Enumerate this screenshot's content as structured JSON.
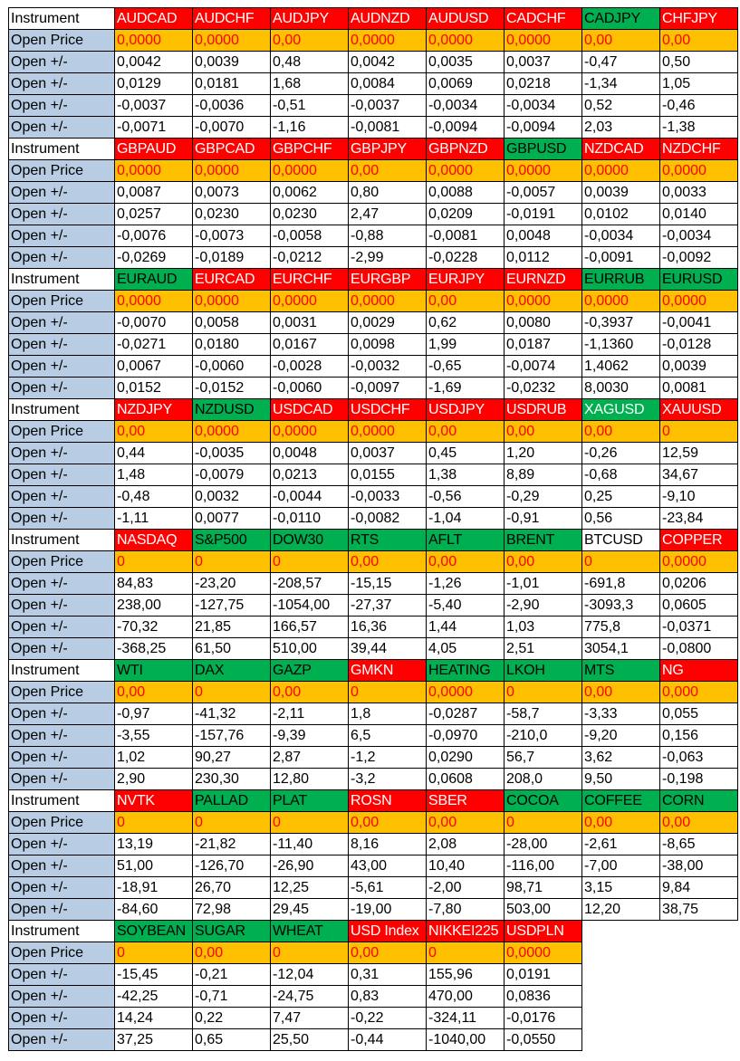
{
  "labels": {
    "instrument": "Instrument",
    "open_price": "Open Price",
    "open_change": "Open +/-"
  },
  "colors": {
    "label_bg": "#b8cce4",
    "open_price_bg": "#ffc000",
    "down_bg": "#ff0000",
    "up_bg": "#00b050",
    "neutral_bg": "#ffffff",
    "red_text": "#ff0000",
    "white_text": "#ffffff"
  },
  "blocks": [
    {
      "instruments": [
        {
          "name": "AUDCAD",
          "color": "red",
          "text": "white"
        },
        {
          "name": "AUDCHF",
          "color": "red",
          "text": "white"
        },
        {
          "name": "AUDJPY",
          "color": "red",
          "text": "white"
        },
        {
          "name": "AUDNZD",
          "color": "red",
          "text": "white"
        },
        {
          "name": "AUDUSD",
          "color": "red",
          "text": "white"
        },
        {
          "name": "CADCHF",
          "color": "red",
          "text": "white"
        },
        {
          "name": "CADJPY",
          "color": "green",
          "text": "black"
        },
        {
          "name": "CHFJPY",
          "color": "red",
          "text": "white"
        }
      ],
      "open_price": [
        "0,0000",
        "0,0000",
        "0,00",
        "0,0000",
        "0,0000",
        "0,0000",
        "0,00",
        "0,00"
      ],
      "changes": [
        [
          "0,0042",
          "0,0039",
          "0,48",
          "0,0042",
          "0,0035",
          "0,0037",
          "-0,47",
          "0,50"
        ],
        [
          "0,0129",
          "0,0181",
          "1,68",
          "0,0084",
          "0,0069",
          "0,0218",
          "-1,34",
          "1,05"
        ],
        [
          "-0,0037",
          "-0,0036",
          "-0,51",
          "-0,0037",
          "-0,0034",
          "-0,0034",
          "0,52",
          "-0,46"
        ],
        [
          "-0,0071",
          "-0,0070",
          "-1,16",
          "-0,0081",
          "-0,0094",
          "-0,0094",
          "2,03",
          "-1,38"
        ]
      ]
    },
    {
      "instruments": [
        {
          "name": "GBPAUD",
          "color": "red",
          "text": "white"
        },
        {
          "name": "GBPCAD",
          "color": "red",
          "text": "white"
        },
        {
          "name": "GBPCHF",
          "color": "red",
          "text": "white"
        },
        {
          "name": "GBPJPY",
          "color": "red",
          "text": "white"
        },
        {
          "name": "GBPNZD",
          "color": "red",
          "text": "white"
        },
        {
          "name": "GBPUSD",
          "color": "green",
          "text": "black"
        },
        {
          "name": "NZDCAD",
          "color": "red",
          "text": "white"
        },
        {
          "name": "NZDCHF",
          "color": "red",
          "text": "white"
        }
      ],
      "open_price": [
        "0,0000",
        "0,0000",
        "0,0000",
        "0,00",
        "0,0000",
        "0,0000",
        "0,0000",
        "0,0000"
      ],
      "changes": [
        [
          "0,0087",
          "0,0073",
          "0,0062",
          "0,80",
          "0,0088",
          "-0,0057",
          "0,0039",
          "0,0033"
        ],
        [
          "0,0257",
          "0,0230",
          "0,0230",
          "2,47",
          "0,0209",
          "-0,0191",
          "0,0102",
          "0,0140"
        ],
        [
          "-0,0076",
          "-0,0073",
          "-0,0058",
          "-0,88",
          "-0,0081",
          "0,0048",
          "-0,0034",
          "-0,0034"
        ],
        [
          "-0,0269",
          "-0,0189",
          "-0,0212",
          "-2,99",
          "-0,0228",
          "0,0112",
          "-0,0091",
          "-0,0092"
        ]
      ]
    },
    {
      "instruments": [
        {
          "name": "EURAUD",
          "color": "green",
          "text": "black"
        },
        {
          "name": "EURCAD",
          "color": "red",
          "text": "white"
        },
        {
          "name": "EURCHF",
          "color": "red",
          "text": "white"
        },
        {
          "name": "EURGBP",
          "color": "red",
          "text": "white"
        },
        {
          "name": "EURJPY",
          "color": "red",
          "text": "white"
        },
        {
          "name": "EURNZD",
          "color": "red",
          "text": "white"
        },
        {
          "name": "EURRUB",
          "color": "green",
          "text": "black"
        },
        {
          "name": "EURUSD",
          "color": "green",
          "text": "black"
        }
      ],
      "open_price": [
        "0,0000",
        "0,0000",
        "0,0000",
        "0,0000",
        "0,00",
        "0,0000",
        "0,0000",
        "0,0000"
      ],
      "changes": [
        [
          "-0,0070",
          "0,0058",
          "0,0031",
          "0,0029",
          "0,62",
          "0,0080",
          "-0,3937",
          "-0,0041"
        ],
        [
          "-0,0271",
          "0,0180",
          "0,0167",
          "0,0098",
          "1,99",
          "0,0187",
          "-1,1360",
          "-0,0128"
        ],
        [
          "0,0067",
          "-0,0060",
          "-0,0028",
          "-0,0032",
          "-0,65",
          "-0,0074",
          "1,4062",
          "0,0039"
        ],
        [
          "0,0152",
          "-0,0152",
          "-0,0060",
          "-0,0097",
          "-1,69",
          "-0,0232",
          "8,0030",
          "0,0081"
        ]
      ]
    },
    {
      "instruments": [
        {
          "name": "NZDJPY",
          "color": "red",
          "text": "white"
        },
        {
          "name": "NZDUSD",
          "color": "green",
          "text": "black"
        },
        {
          "name": "USDCAD",
          "color": "red",
          "text": "white"
        },
        {
          "name": "USDCHF",
          "color": "red",
          "text": "white"
        },
        {
          "name": "USDJPY",
          "color": "red",
          "text": "white"
        },
        {
          "name": "USDRUB",
          "color": "red",
          "text": "white"
        },
        {
          "name": "XAGUSD",
          "color": "green",
          "text": "white"
        },
        {
          "name": "XAUUSD",
          "color": "red",
          "text": "white"
        }
      ],
      "open_price": [
        "0,00",
        "0,0000",
        "0,0000",
        "0,0000",
        "0,00",
        "0,00",
        "0,00",
        "0"
      ],
      "changes": [
        [
          "0,44",
          "-0,0035",
          "0,0048",
          "0,0037",
          "0,45",
          "1,20",
          "-0,26",
          "12,59"
        ],
        [
          "1,48",
          "-0,0079",
          "0,0213",
          "0,0155",
          "1,38",
          "8,89",
          "-0,68",
          "34,67"
        ],
        [
          "-0,48",
          "0,0032",
          "-0,0044",
          "-0,0033",
          "-0,56",
          "-0,29",
          "0,25",
          "-9,10"
        ],
        [
          "-1,11",
          "0,0077",
          "-0,0110",
          "-0,0082",
          "-1,04",
          "-0,91",
          "0,56",
          "-23,84"
        ]
      ]
    },
    {
      "instruments": [
        {
          "name": "NASDAQ",
          "color": "red",
          "text": "white"
        },
        {
          "name": "S&P500",
          "color": "green",
          "text": "black"
        },
        {
          "name": "DOW30",
          "color": "green",
          "text": "black"
        },
        {
          "name": "RTS",
          "color": "green",
          "text": "black"
        },
        {
          "name": "AFLT",
          "color": "green",
          "text": "black"
        },
        {
          "name": "BRENT",
          "color": "green",
          "text": "black"
        },
        {
          "name": "BTCUSD",
          "color": "white",
          "text": "black"
        },
        {
          "name": "COPPER",
          "color": "red",
          "text": "white"
        }
      ],
      "open_price": [
        "0",
        "0",
        "0",
        "0,00",
        "0,00",
        "0,00",
        "0",
        "0,0000"
      ],
      "changes": [
        [
          "84,83",
          "-23,20",
          "-208,57",
          "-15,15",
          "-1,26",
          "-1,01",
          "-691,8",
          "0,0206"
        ],
        [
          "238,00",
          "-127,75",
          "-1054,00",
          "-27,37",
          "-5,40",
          "-2,90",
          "-3093,3",
          "0,0605"
        ],
        [
          "-70,32",
          "21,85",
          "166,57",
          "16,36",
          "1,44",
          "1,03",
          "775,8",
          "-0,0371"
        ],
        [
          "-368,25",
          "61,50",
          "510,00",
          "39,44",
          "4,05",
          "2,51",
          "3054,1",
          "-0,0800"
        ]
      ]
    },
    {
      "instruments": [
        {
          "name": "WTI",
          "color": "green",
          "text": "black"
        },
        {
          "name": "DAX",
          "color": "green",
          "text": "black"
        },
        {
          "name": "GAZP",
          "color": "green",
          "text": "black"
        },
        {
          "name": "GMKN",
          "color": "red",
          "text": "white"
        },
        {
          "name": "HEATING",
          "color": "green",
          "text": "black"
        },
        {
          "name": "LKOH",
          "color": "green",
          "text": "black"
        },
        {
          "name": "MTS",
          "color": "green",
          "text": "black"
        },
        {
          "name": "NG",
          "color": "red",
          "text": "white"
        }
      ],
      "open_price": [
        "0,00",
        "0",
        "0,00",
        "0",
        "0,0000",
        "0",
        "0,00",
        "0,000"
      ],
      "changes": [
        [
          "-0,97",
          "-41,32",
          "-2,11",
          "1,8",
          "-0,0287",
          "-58,7",
          "-3,33",
          "0,055"
        ],
        [
          "-3,55",
          "-157,76",
          "-9,39",
          "6,5",
          "-0,0970",
          "-210,0",
          "-9,20",
          "0,156"
        ],
        [
          "1,02",
          "90,27",
          "2,87",
          "-1,2",
          "0,0290",
          "56,7",
          "3,62",
          "-0,063"
        ],
        [
          "2,90",
          "230,30",
          "12,80",
          "-3,2",
          "0,0608",
          "208,0",
          "9,50",
          "-0,198"
        ]
      ]
    },
    {
      "instruments": [
        {
          "name": "NVTK",
          "color": "red",
          "text": "white"
        },
        {
          "name": "PALLAD",
          "color": "green",
          "text": "black"
        },
        {
          "name": "PLAT",
          "color": "green",
          "text": "black"
        },
        {
          "name": "ROSN",
          "color": "red",
          "text": "white"
        },
        {
          "name": "SBER",
          "color": "red",
          "text": "white"
        },
        {
          "name": "COCOA",
          "color": "green",
          "text": "black"
        },
        {
          "name": "COFFEE",
          "color": "green",
          "text": "black"
        },
        {
          "name": "CORN",
          "color": "green",
          "text": "black"
        }
      ],
      "open_price": [
        "0",
        "0",
        "0",
        "0,00",
        "0,00",
        "0",
        "0,00",
        "0,00"
      ],
      "changes": [
        [
          "13,19",
          "-21,82",
          "-11,40",
          "8,16",
          "2,08",
          "-28,00",
          "-2,61",
          "-8,65"
        ],
        [
          "51,00",
          "-126,70",
          "-26,90",
          "43,00",
          "10,40",
          "-116,00",
          "-7,00",
          "-38,00"
        ],
        [
          "-18,91",
          "26,70",
          "12,25",
          "-5,61",
          "-2,00",
          "98,71",
          "3,15",
          "9,84"
        ],
        [
          "-84,60",
          "72,98",
          "29,45",
          "-19,00",
          "-7,80",
          "503,00",
          "12,20",
          "38,75"
        ]
      ]
    },
    {
      "instruments": [
        {
          "name": "SOYBEAN",
          "color": "green",
          "text": "black"
        },
        {
          "name": "SUGAR",
          "color": "green",
          "text": "black"
        },
        {
          "name": "WHEAT",
          "color": "green",
          "text": "black"
        },
        {
          "name": "USD Index",
          "color": "red",
          "text": "white"
        },
        {
          "name": "NIKKEI225",
          "color": "red",
          "text": "white"
        },
        {
          "name": "USDPLN",
          "color": "red",
          "text": "white"
        }
      ],
      "open_price": [
        "0",
        "0,00",
        "0",
        "0,00",
        "0",
        "0,0000"
      ],
      "changes": [
        [
          "-15,45",
          "-0,21",
          "-12,04",
          "0,31",
          "155,96",
          "0,0191"
        ],
        [
          "-42,25",
          "-0,71",
          "-24,75",
          "0,83",
          "470,00",
          "0,0836"
        ],
        [
          "14,24",
          "0,22",
          "7,47",
          "-0,22",
          "-324,11",
          "-0,0176"
        ],
        [
          "37,25",
          "0,65",
          "25,50",
          "-0,44",
          "-1040,00",
          "-0,0550"
        ]
      ]
    }
  ]
}
